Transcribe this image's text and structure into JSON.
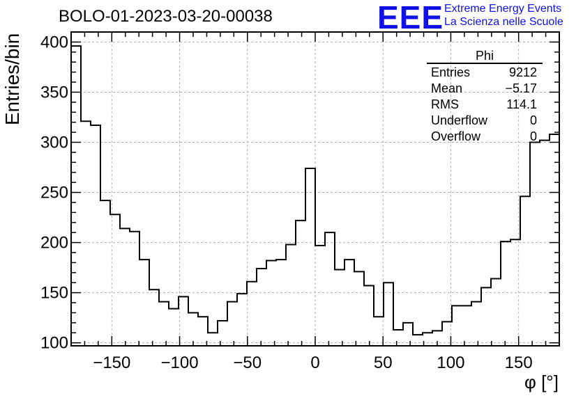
{
  "header": {
    "title": "BOLO-01-2023-03-20-00038",
    "logo_text": "EEE",
    "org_line1": "Extreme Energy Events",
    "org_line2": "La Scienza nelle Scuole"
  },
  "stats_box": {
    "name": "Phi",
    "rows": [
      {
        "label": "Entries",
        "value": "9212"
      },
      {
        "label": "Mean",
        "value": "−5.17"
      },
      {
        "label": "RMS",
        "value": "114.1"
      },
      {
        "label": "Underflow",
        "value": "0"
      },
      {
        "label": "Overflow",
        "value": "0"
      }
    ]
  },
  "colors": {
    "logo": "#1010e8",
    "histogram_line": "#000000",
    "grid": "#b0b0b0"
  },
  "chart_data": {
    "type": "bar",
    "style": "step-histogram",
    "xlabel": "φ [°]",
    "ylabel": "Entries/bin",
    "xlim": [
      -180,
      180
    ],
    "ylim": [
      97,
      410
    ],
    "grid": true,
    "bin_width": 7.2,
    "x_ticks": [
      -150,
      -100,
      -50,
      0,
      50,
      100,
      150
    ],
    "y_ticks": [
      100,
      150,
      200,
      250,
      300,
      350,
      400
    ],
    "x_tick_labels": [
      "−150",
      "−100",
      "−50",
      "0",
      "50",
      "100",
      "150"
    ],
    "y_tick_labels": [
      "100",
      "150",
      "200",
      "250",
      "300",
      "350",
      "400"
    ],
    "bin_edges_start": -180,
    "values": [
      396,
      321,
      317,
      242,
      228,
      214,
      211,
      183,
      153,
      141,
      134,
      146,
      130,
      126,
      110,
      122,
      141,
      149,
      161,
      174,
      182,
      183,
      198,
      222,
      274,
      197,
      210,
      173,
      183,
      171,
      157,
      126,
      160,
      113,
      120,
      108,
      110,
      112,
      121,
      137,
      137,
      141,
      155,
      164,
      201,
      203,
      246,
      300,
      302,
      308
    ]
  }
}
